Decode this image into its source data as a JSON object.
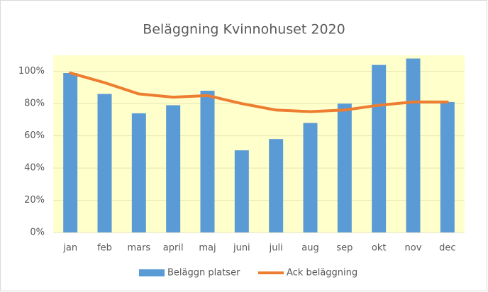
{
  "chart_data": {
    "type": "bar",
    "title": "Beläggning Kvinnohuset 2020",
    "categories": [
      "jan",
      "feb",
      "mars",
      "april",
      "maj",
      "juni",
      "juli",
      "aug",
      "sep",
      "okt",
      "nov",
      "dec"
    ],
    "series": [
      {
        "name": "Beläggn platser",
        "type": "bar",
        "color": "#5b9bd5",
        "values": [
          99,
          86,
          74,
          79,
          88,
          51,
          58,
          68,
          80,
          104,
          108,
          81
        ]
      },
      {
        "name": "Ack beläggning",
        "type": "line",
        "color": "#ed7d31",
        "values": [
          99,
          93,
          86,
          84,
          85,
          80,
          76,
          75,
          76,
          79,
          81,
          81
        ]
      }
    ],
    "ylim": [
      0,
      110
    ],
    "yticks": [
      {
        "value": 0,
        "label": "0%"
      },
      {
        "value": 20,
        "label": "20%"
      },
      {
        "value": 40,
        "label": "40%"
      },
      {
        "value": 60,
        "label": "60%"
      },
      {
        "value": 80,
        "label": "80%"
      },
      {
        "value": 100,
        "label": "100%"
      }
    ],
    "grid": true,
    "legend": "bottom"
  }
}
